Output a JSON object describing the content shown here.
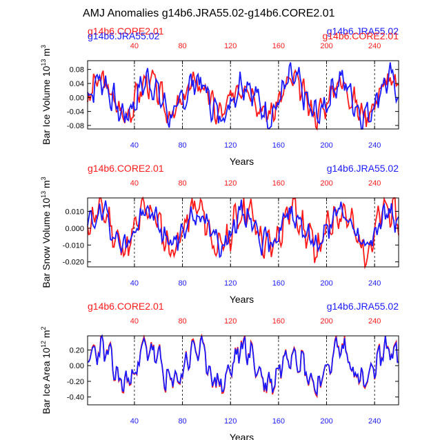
{
  "figure_title": "AMJ Anomalies g14b6.JRA55.02-g14b6.CORE2.01",
  "colors": {
    "core": "#ff1a1a",
    "jra": "#1a1aff",
    "axis": "#000000"
  },
  "chart_data": [
    {
      "type": "line",
      "ylabel": "Bar Ice Volume 10",
      "ylabel_exp": "13",
      "ylabel_unit": " m",
      "ylabel_unit_exp": "3",
      "xlabel": "Years",
      "xlim": [
        1,
        260
      ],
      "ylim": [
        -0.09,
        0.105
      ],
      "yticks": [
        0.08,
        0.04,
        0.0,
        -0.04,
        -0.08
      ],
      "ytick_labels": [
        "0.08",
        "0.04",
        "0.00",
        "-0.04",
        "-0.08"
      ],
      "xticks": [
        40,
        80,
        120,
        160,
        200,
        240
      ],
      "xtick_labels": [
        "40",
        "80",
        "120",
        "160",
        "200",
        "240"
      ],
      "top_labels": [
        "g14b6.CORE2.01",
        "g14b6.JRA55.02"
      ],
      "series": [
        {
          "name": "g14b6.CORE2.01",
          "amp": 0.034,
          "seed": 3,
          "lo": -0.09,
          "hi": 0.1
        },
        {
          "name": "g14b6.JRA55.02",
          "amp": 0.036,
          "seed": 7,
          "lo": -0.09,
          "hi": 0.1
        }
      ]
    },
    {
      "type": "line",
      "ylabel": "Bar Snow Volume 10",
      "ylabel_exp": "13",
      "ylabel_unit": " m",
      "ylabel_unit_exp": "3",
      "xlabel": "Years",
      "xlim": [
        1,
        260
      ],
      "ylim": [
        -0.023,
        0.018
      ],
      "yticks": [
        0.01,
        0.0,
        -0.01,
        -0.02
      ],
      "ytick_labels": [
        "0.010",
        "0.000",
        "-0.010",
        "-0.020"
      ],
      "xticks": [
        40,
        80,
        120,
        160,
        200,
        240
      ],
      "xtick_labels": [
        "40",
        "80",
        "120",
        "160",
        "200",
        "240"
      ],
      "top_labels": [
        "g14b6.CORE2.01",
        "g14b6.JRA55.02"
      ],
      "series": [
        {
          "name": "g14b6.CORE2.01",
          "amp": 0.0085,
          "seed": 11,
          "lo": -0.023,
          "hi": 0.018
        },
        {
          "name": "g14b6.JRA55.02",
          "amp": 0.0065,
          "seed": 19,
          "lo": -0.023,
          "hi": 0.018
        }
      ]
    },
    {
      "type": "line",
      "ylabel": "Bar Ice Area 10",
      "ylabel_exp": "12",
      "ylabel_unit": " m",
      "ylabel_unit_exp": "2",
      "xlabel": "Years",
      "xlim": [
        1,
        260
      ],
      "ylim": [
        -0.5,
        0.38
      ],
      "yticks": [
        0.2,
        0.0,
        -0.2,
        -0.4
      ],
      "ytick_labels": [
        "0.20",
        "0.00",
        "-0.20",
        "-0.40"
      ],
      "xticks": [
        40,
        80,
        120,
        160,
        200,
        240
      ],
      "xtick_labels": [
        "40",
        "80",
        "120",
        "160",
        "200",
        "240"
      ],
      "top_labels": [
        "g14b6.CORE2.01",
        "g14b6.JRA55.02"
      ],
      "series": [
        {
          "name": "g14b6.CORE2.01",
          "amp": 0.17,
          "seed": 23,
          "lo": -0.5,
          "hi": 0.38
        },
        {
          "name": "g14b6.JRA55.02",
          "amp": 0.16,
          "seed": 23,
          "lo": -0.5,
          "hi": 0.38
        }
      ]
    }
  ]
}
